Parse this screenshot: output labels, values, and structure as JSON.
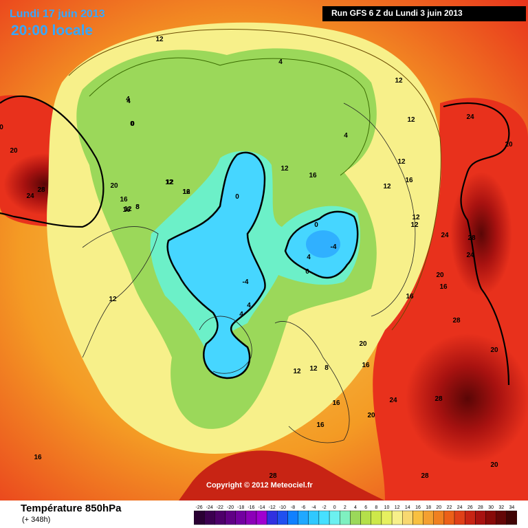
{
  "map": {
    "date": "Lundi 17 juin 2013",
    "time": "20:00 locale",
    "run": "Run GFS 6 Z du Lundi 3 juin 2013",
    "copyright": "Copyright © 2012 Meteociel.fr",
    "variable": "Température 850hPa",
    "lead": "(+ 348h)",
    "colors": {
      "title_text": "#35a8ff",
      "run_box": "#000000",
      "cold_core": "#46d6ff",
      "green": "#9bd85a",
      "yellow": "#f7f08a",
      "orange": "#f49b24",
      "red": "#e8311c",
      "dark_red": "#7a0e0e"
    },
    "legend_values": [
      "-26",
      "-24",
      "-22",
      "-20",
      "-18",
      "-16",
      "-14",
      "-12",
      "-10",
      "-8",
      "-6",
      "-4",
      "-2",
      "0",
      "2",
      "4",
      "6",
      "8",
      "10",
      "12",
      "14",
      "16",
      "18",
      "20",
      "22",
      "24",
      "26",
      "28",
      "30",
      "32",
      "34"
    ],
    "legend_colors": [
      "#2a0033",
      "#3c0050",
      "#4e006a",
      "#600085",
      "#7200a0",
      "#8c00b8",
      "#a000d0",
      "#3030e0",
      "#2050f0",
      "#1080ff",
      "#20a8ff",
      "#30c8ff",
      "#46e0ff",
      "#6cf0f0",
      "#7ff0c0",
      "#9bd85a",
      "#b4e04a",
      "#cde84a",
      "#e6f060",
      "#f7f08a",
      "#f8d870",
      "#f8c040",
      "#f4a030",
      "#f08020",
      "#ec6018",
      "#e04018",
      "#c82414",
      "#a81210",
      "#880a08",
      "#640606",
      "#400404"
    ],
    "contour_labels": [
      {
        "text": "12"
      },
      {
        "text": "4"
      },
      {
        "text": "4"
      },
      {
        "text": "0"
      },
      {
        "text": "12"
      },
      {
        "text": "12"
      },
      {
        "text": "12"
      },
      {
        "text": "24"
      },
      {
        "text": "20"
      },
      {
        "text": "20"
      },
      {
        "text": "0"
      },
      {
        "text": "28"
      },
      {
        "text": "24"
      },
      {
        "text": "20"
      },
      {
        "text": "16"
      },
      {
        "text": "12"
      },
      {
        "text": "16"
      },
      {
        "text": "12"
      },
      {
        "text": "8"
      },
      {
        "text": "0"
      },
      {
        "text": "12"
      },
      {
        "text": "16"
      },
      {
        "text": "4"
      },
      {
        "text": "12"
      },
      {
        "text": "12"
      },
      {
        "text": "16"
      },
      {
        "text": "12"
      },
      {
        "text": "24"
      },
      {
        "text": "28"
      },
      {
        "text": "24"
      },
      {
        "text": "0"
      },
      {
        "text": "-4"
      },
      {
        "text": "4"
      },
      {
        "text": "0"
      },
      {
        "text": "-4"
      },
      {
        "text": "4"
      },
      {
        "text": "4"
      },
      {
        "text": "16"
      },
      {
        "text": "20"
      },
      {
        "text": "16"
      },
      {
        "text": "20"
      },
      {
        "text": "28"
      },
      {
        "text": "12"
      },
      {
        "text": "12"
      },
      {
        "text": "8"
      },
      {
        "text": "16"
      },
      {
        "text": "20"
      },
      {
        "text": "28"
      },
      {
        "text": "24"
      },
      {
        "text": "16"
      },
      {
        "text": "20"
      },
      {
        "text": "16"
      },
      {
        "text": "28"
      },
      {
        "text": "20"
      },
      {
        "text": "28"
      },
      {
        "text": "16"
      },
      {
        "text": "12"
      },
      {
        "text": "16"
      },
      {
        "text": "12"
      },
      {
        "text": "12"
      },
      {
        "text": "8"
      },
      {
        "text": "12"
      },
      {
        "text": "4"
      },
      {
        "text": "0"
      }
    ]
  }
}
